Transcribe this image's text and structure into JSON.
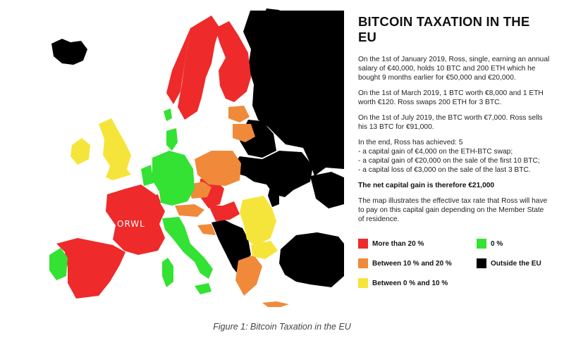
{
  "header": {
    "title": "BITCOIN TAXATION IN THE EU"
  },
  "paragraphs": {
    "p1": "On the 1st of January 2019, Ross, single, earning an annual salary of €40,000, holds 10 BTC and 200 ETH which he bought 9 months earlier for €50,000 and €20,000.",
    "p2": "On the 1st of March 2019, 1 BTC worth €8,000 and 1 ETH worth €120. Ross swaps 200 ETH for 3 BTC.",
    "p3": "On the 1st of July 2019, the BTC worth €7,000. Ross sells his 13 BTC for €91,000.",
    "p4_intro": "In the end, Ross has achieved: 5",
    "p4_items": [
      " - a capital gain of €4,000 on the ETH-BTC swap;",
      " - a capital gain of €20,000 on the sale of the first 10 BTC;",
      "  - a capital loss of €3,000 on the sale of the last 3 BTC."
    ],
    "net": "The net capital gain is therefore €21,000",
    "p5": "The map illustrates the effective tax rate that Ross will have to pay on this capital gain depending on the Member State of residence."
  },
  "legend": [
    {
      "label": "More than 20 %",
      "color": "#ee2a2a"
    },
    {
      "label": "0 %",
      "color": "#33e233"
    },
    {
      "label": "Between 10 % and 20 %",
      "color": "#f08a3a"
    },
    {
      "label": "Outside the EU",
      "color": "#000000"
    },
    {
      "label": "Between 0 % and 10 %",
      "color": "#f5e53a"
    }
  ],
  "map": {
    "watermark": "ORWL",
    "colors": {
      "red": "#ee2a2a",
      "orange": "#f08a3a",
      "yellow": "#f5e53a",
      "green": "#33e233",
      "black": "#000000"
    }
  },
  "caption": "Figure 1: Bitcoin Taxation in the EU"
}
